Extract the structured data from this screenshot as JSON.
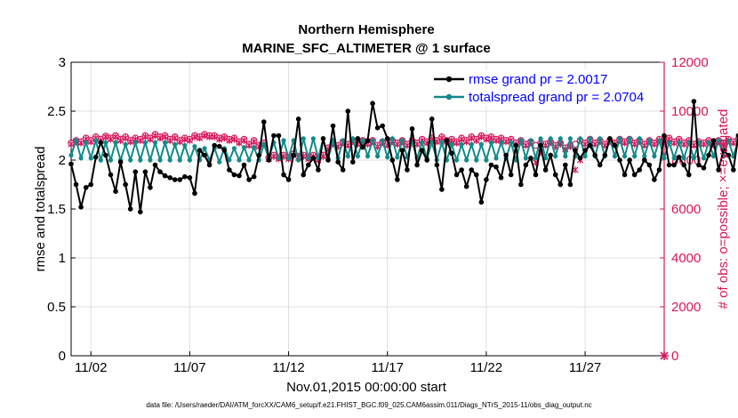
{
  "chart_data": {
    "type": "line",
    "title": "Northern Hemisphere",
    "subtitle": "MARINE_SFC_ALTIMETER @ 1 surface",
    "xlabel": "Nov.01,2015 00:00:00 start",
    "ylabel_left": "rmse and totalspread",
    "ylabel_right": "# of obs: o=possible; ×=evaluated",
    "footnote": "data file: /Users/raeder/DAI/ATM_forcXX/CAM6_setup/f.e21.FHIST_BGC.f09_025.CAM6assim.011/Diags_NTrS_2015-11/obs_diag_output.nc",
    "xlim": [
      0.5,
      30.5
    ],
    "ylim_left": [
      0,
      3
    ],
    "ylim_right": [
      0,
      12000
    ],
    "x_ticks": [
      1.5,
      6.5,
      11.5,
      16.5,
      21.5,
      26.5
    ],
    "x_tick_labels": [
      "11/02",
      "11/07",
      "11/12",
      "11/17",
      "11/22",
      "11/27"
    ],
    "y_ticks_left": [
      0,
      0.5,
      1,
      1.5,
      2,
      2.5,
      3
    ],
    "y_tick_labels_left": [
      "0",
      "0.5",
      "1",
      "1.5",
      "2",
      "2.5",
      "3"
    ],
    "y_ticks_right": [
      0,
      2000,
      4000,
      6000,
      8000,
      10000,
      12000
    ],
    "y_tick_labels_right": [
      "0",
      "2000",
      "4000",
      "6000",
      "8000",
      "10000",
      "12000"
    ],
    "obs_at_zero_x": 30.5,
    "colors": {
      "rmse": "#000000",
      "totalspread": "#138a8a",
      "obs": "#d6155b",
      "legend_text": "#0000ff",
      "grid": "#d9d9d9"
    },
    "series": [
      {
        "name": "rmse",
        "legend": "rmse grand pr = 2.0017",
        "x_start": 0.5,
        "x_step": 0.25,
        "values": [
          1.96,
          1.75,
          1.52,
          1.72,
          1.75,
          2.03,
          2.18,
          2.05,
          1.85,
          1.68,
          1.98,
          1.75,
          1.5,
          1.88,
          1.47,
          1.88,
          1.72,
          1.95,
          1.88,
          1.84,
          1.82,
          1.8,
          1.8,
          1.83,
          1.82,
          1.66,
          2.1,
          2.05,
          1.95,
          2.15,
          2.14,
          2.1,
          1.9,
          1.85,
          1.84,
          1.95,
          1.8,
          1.83,
          2.05,
          2.39,
          2.0,
          2.25,
          2.25,
          1.85,
          1.8,
          2.05,
          2.42,
          1.85,
          1.95,
          2.02,
          1.9,
          2.22,
          2.0,
          2.35,
          1.98,
          1.9,
          2.5,
          1.98,
          2.22,
          2.13,
          2.2,
          2.58,
          2.33,
          2.35,
          2.22,
          2.0,
          1.8,
          2.1,
          1.9,
          2.32,
          1.95,
          2.1,
          2.0,
          2.42,
          1.95,
          1.7,
          2.2,
          2.07,
          1.85,
          1.9,
          1.73,
          1.9,
          1.85,
          1.57,
          1.8,
          1.95,
          1.93,
          1.82,
          2.05,
          1.85,
          2.15,
          1.75,
          1.95,
          2.02,
          1.85,
          2.15,
          1.9,
          2.05,
          1.85,
          1.75,
          1.95,
          1.75,
          2.1,
          2.02,
          2.1,
          2.15,
          2.05,
          1.95,
          2.05,
          2.22,
          2.15,
          2.0,
          1.85,
          2.0,
          1.85,
          1.9,
          2.0,
          1.95,
          1.8,
          1.9,
          2.25,
          1.95,
          1.95,
          2.03,
          1.95,
          1.85,
          2.6,
          1.95,
          1.92,
          2.05,
          2.2,
          1.9,
          2.1,
          2.05,
          1.9,
          2.25,
          1.95,
          2.3,
          2.05,
          1.95,
          2.0,
          1.85,
          2.2,
          2.05,
          1.9,
          1.7,
          2.05,
          2.15,
          1.85,
          2.0,
          1.82,
          1.95,
          2.0,
          1.68,
          1.95,
          1.85,
          2.05,
          2.4,
          1.8,
          2.15,
          2.0,
          1.9,
          2.15,
          1.85,
          2.25,
          2.05,
          1.8,
          2.1,
          2.25,
          2.1,
          2.0,
          2.02,
          1.95,
          2.1,
          2.25,
          2.05,
          2.05
        ]
      },
      {
        "name": "totalspread",
        "legend": "totalspread grand pr = 2.0704",
        "x_start": 0.5,
        "x_step": 0.25,
        "values": [
          2.05,
          2.2,
          2.02,
          2.18,
          2.02,
          2.2,
          2.0,
          2.18,
          2.0,
          2.18,
          2.0,
          2.16,
          2.0,
          2.18,
          2.0,
          2.18,
          2.0,
          2.18,
          2.0,
          2.18,
          2.0,
          2.16,
          2.0,
          2.15,
          2.0,
          2.14,
          2.0,
          2.12,
          2.0,
          2.12,
          1.98,
          2.12,
          2.0,
          2.12,
          2.0,
          2.13,
          2.0,
          2.13,
          2.0,
          2.16,
          2.02,
          2.18,
          2.02,
          2.2,
          2.02,
          2.2,
          2.0,
          2.22,
          2.02,
          2.22,
          2.02,
          2.22,
          2.02,
          2.2,
          2.02,
          2.2,
          2.04,
          2.22,
          2.04,
          2.2,
          2.04,
          2.2,
          2.04,
          2.2,
          2.03,
          2.22,
          2.03,
          2.2,
          2.03,
          2.18,
          2.02,
          2.18,
          2.02,
          2.18,
          2.0,
          2.18,
          2.0,
          2.16,
          2.0,
          2.16,
          2.0,
          2.16,
          2.0,
          2.16,
          2.0,
          2.18,
          2.02,
          2.18,
          2.02,
          2.18,
          2.0,
          2.2,
          2.02,
          2.2,
          2.02,
          2.22,
          2.02,
          2.22,
          2.04,
          2.22,
          2.04,
          2.22,
          2.04,
          2.22,
          2.04,
          2.22,
          2.04,
          2.22,
          2.04,
          2.22,
          2.04,
          2.22,
          2.04,
          2.22,
          2.04,
          2.22,
          2.04,
          2.2,
          2.04,
          2.2,
          2.02,
          2.18,
          2.02,
          2.18,
          2.02,
          2.18,
          2.02,
          2.18,
          2.02,
          2.18,
          2.04,
          2.2,
          2.04,
          2.2,
          2.04,
          2.2,
          2.04,
          2.2,
          2.02,
          2.2,
          2.02,
          2.2,
          2.02,
          2.18,
          2.02,
          2.2,
          2.04,
          2.2,
          2.04,
          2.2,
          2.04,
          2.2,
          2.04,
          2.2,
          2.04,
          2.2,
          2.04,
          2.2,
          2.04,
          2.22,
          2.04,
          2.22,
          2.04,
          2.22,
          2.04,
          2.22,
          2.04,
          2.22,
          2.04,
          2.22,
          2.04,
          2.2,
          2.04,
          2.18,
          2.03,
          2.18,
          2.03,
          2.18,
          2.03,
          2.18,
          2.03
        ]
      },
      {
        "name": "obs_possible",
        "legend": "o=possible",
        "x_start": 0.5,
        "x_step": 0.25,
        "values": [
          8700,
          8800,
          8750,
          8900,
          8800,
          8950,
          8850,
          8980,
          8900,
          9000,
          8850,
          8950,
          8800,
          8900,
          8850,
          9000,
          8900,
          9050,
          8950,
          9000,
          8850,
          8950,
          8800,
          8900,
          8850,
          9000,
          8950,
          9050,
          9000,
          9000,
          8900,
          8950,
          8850,
          8900,
          8750,
          8850,
          8650,
          8800,
          8600,
          8700,
          8100,
          8200,
          8100,
          8200,
          8100,
          8250,
          8150,
          8200,
          8100,
          8200,
          8050,
          8200,
          8500,
          8700,
          8600,
          8750,
          8650,
          8800,
          8700,
          8800,
          8700,
          8800,
          8600,
          8750,
          8650,
          8800,
          8700,
          8800,
          8650,
          8800,
          8700,
          8850,
          8750,
          8900,
          8800,
          8950,
          8800,
          8850,
          8750,
          8900,
          8800,
          8950,
          8850,
          9000,
          8900,
          8950,
          8850,
          8900,
          8800,
          8850,
          8700,
          8800,
          8650,
          8750,
          8600,
          8700,
          8650,
          8750,
          8600,
          8700,
          8500,
          8600,
          8650,
          8800,
          8700,
          8850,
          8700,
          8800,
          8650,
          8800,
          8700,
          8850,
          8750,
          8850,
          8700,
          8800,
          8650,
          8800,
          8700,
          8850,
          8800,
          8900,
          8750,
          8850,
          8700,
          8800,
          8650,
          8750,
          8700,
          8800,
          8650,
          8800,
          8700,
          8850,
          8750,
          8850,
          8700,
          8800,
          8700,
          8800,
          8650,
          8750,
          8650,
          8750,
          8700,
          8800,
          8700,
          8800,
          8700,
          8850,
          8750,
          8850,
          8700,
          8800,
          8650,
          8800,
          8700,
          8850,
          8750,
          8800,
          8700,
          8800,
          8700,
          8800,
          8650,
          8750,
          8700,
          8800,
          8650,
          8800,
          8700,
          8800,
          8700,
          8750,
          8650,
          8700,
          8600,
          8650,
          8550,
          8600,
          8500,
          8550
        ]
      },
      {
        "name": "obs_evaluated",
        "legend": "×=evaluated",
        "x_start": 0.5,
        "x_step": 0.25,
        "values": [
          8650,
          8750,
          8700,
          8850,
          8750,
          8900,
          8800,
          8950,
          8850,
          8950,
          8800,
          8900,
          8750,
          8850,
          8800,
          8950,
          8850,
          9000,
          8900,
          8950,
          8800,
          8900,
          8750,
          8850,
          8800,
          8950,
          8900,
          9000,
          8950,
          8950,
          8850,
          8900,
          8800,
          8850,
          8700,
          8800,
          8600,
          8750,
          8550,
          8650,
          8050,
          8150,
          8050,
          8150,
          8050,
          8200,
          8100,
          8150,
          8050,
          8150,
          8000,
          8150,
          8450,
          8650,
          8550,
          8700,
          8600,
          8750,
          8650,
          8750,
          8650,
          8750,
          8550,
          8700,
          8600,
          8750,
          8650,
          8750,
          8600,
          8750,
          8650,
          8800,
          8700,
          8850,
          8750,
          8900,
          8750,
          8800,
          8700,
          8850,
          8750,
          8900,
          8800,
          8950,
          8850,
          8900,
          8800,
          8850,
          8750,
          8800,
          8650,
          8750,
          8600,
          8700,
          7900,
          8300,
          8600,
          8700,
          8550,
          8650,
          8450,
          8550,
          7600,
          8000,
          8650,
          8800,
          8650,
          8750,
          8600,
          8750,
          8650,
          8800,
          8700,
          8800,
          8650,
          8750,
          8600,
          8750,
          8650,
          8800,
          8750,
          8850,
          8700,
          8800,
          8650,
          8750,
          8600,
          8700,
          8650,
          8750,
          8600,
          8750,
          8650,
          8800,
          8700,
          8800,
          8650,
          8750,
          8650,
          8750,
          8600,
          8700,
          8600,
          8700,
          8650,
          8750,
          8650,
          8750,
          8650,
          8800,
          8700,
          8800,
          8650,
          8750,
          8600,
          8750,
          8650,
          8800,
          8700,
          8750,
          8650,
          8750,
          8650,
          8750,
          8600,
          8700,
          8650,
          8750,
          8600,
          8750,
          8650,
          8750,
          8650,
          8700,
          8600,
          8650,
          8550,
          8600,
          8500,
          8550,
          8450,
          8500
        ]
      }
    ]
  }
}
